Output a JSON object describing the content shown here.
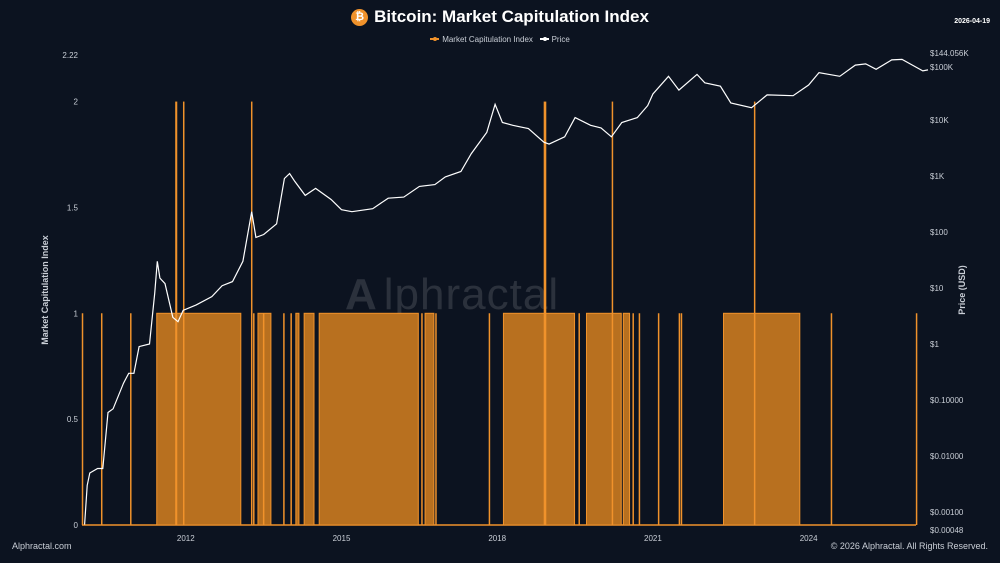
{
  "header": {
    "title": "Bitcoin: Market Capitulation Index",
    "coin_icon": "bitcoin-icon",
    "date": "2026-04-19"
  },
  "footer": {
    "left": "Alphractal.com",
    "right": "© 2026 Alphractal. All Rights Reserved."
  },
  "watermark": "Alphractal",
  "colors": {
    "background": "#0c1320",
    "index": "#f0922b",
    "index_fill": "#b8701f",
    "price": "#ffffff"
  },
  "chart_data": {
    "type": "line",
    "title": "Bitcoin: Market Capitulation Index",
    "xlabel": "",
    "ylabel": "Market Capitulation Index",
    "y2label": "Price (USD)",
    "xlim": [
      2010.0,
      2026.3
    ],
    "ylim": [
      0,
      2.22
    ],
    "y2lim": [
      0.00048,
      144056
    ],
    "y2scale": "log",
    "grid": false,
    "legend_placement": "top-center",
    "x_ticks": [
      "2012",
      "2015",
      "2018",
      "2021",
      "2024"
    ],
    "x_tick_values": [
      2012,
      2015,
      2018,
      2021,
      2024
    ],
    "y_ticks": [
      "0",
      "0.5",
      "1",
      "1.5",
      "2",
      "2.22"
    ],
    "y_tick_values": [
      0,
      0.5,
      1,
      1.5,
      2,
      2.22
    ],
    "y2_ticks": [
      "$0.00048",
      "$0.00100",
      "$0.01000",
      "$0.10000",
      "$1",
      "$10",
      "$100",
      "$1K",
      "$10K",
      "$100K",
      "$144.056K"
    ],
    "y2_tick_values": [
      0.00048,
      0.001,
      0.01,
      0.1,
      1,
      10,
      100,
      1000,
      10000,
      100000,
      144056
    ],
    "series": [
      {
        "name": "Market Capitulation Index",
        "color": "#f0922b",
        "kind": "step",
        "ranges_value_1": [
          [
            2011.44,
            2013.06
          ],
          [
            2013.39,
            2013.64
          ],
          [
            2014.12,
            2014.18
          ],
          [
            2014.28,
            2014.47
          ],
          [
            2014.57,
            2016.48
          ],
          [
            2016.61,
            2016.78
          ],
          [
            2018.12,
            2019.49
          ],
          [
            2019.72,
            2020.39
          ],
          [
            2020.43,
            2020.55
          ],
          [
            2022.36,
            2023.83
          ]
        ],
        "spikes_value_1": [
          2010.01,
          2010.38,
          2010.94,
          2013.31,
          2013.5,
          2013.89,
          2014.03,
          2016.55,
          2016.82,
          2017.85,
          2019.58,
          2020.62,
          2020.74,
          2021.11,
          2021.51,
          2021.55,
          2024.44,
          2026.08
        ],
        "spikes_value_2": [
          [
            2011.81,
            2011.85
          ],
          [
            2011.96,
            2011.96
          ],
          [
            2013.27,
            2013.27
          ],
          [
            2018.91,
            2018.96
          ],
          [
            2020.22,
            2020.22
          ],
          [
            2022.96,
            2022.96
          ]
        ]
      },
      {
        "name": "Price",
        "color": "#ffffff",
        "kind": "line",
        "axis": "right",
        "x": [
          2010.05,
          2010.1,
          2010.15,
          2010.3,
          2010.4,
          2010.5,
          2010.6,
          2010.8,
          2010.9,
          2011.0,
          2011.1,
          2011.3,
          2011.4,
          2011.45,
          2011.5,
          2011.6,
          2011.75,
          2011.85,
          2011.95,
          2012.2,
          2012.5,
          2012.7,
          2012.9,
          2013.1,
          2013.27,
          2013.35,
          2013.5,
          2013.75,
          2013.9,
          2014.0,
          2014.1,
          2014.3,
          2014.5,
          2014.8,
          2015.0,
          2015.2,
          2015.6,
          2015.9,
          2016.2,
          2016.5,
          2016.8,
          2017.0,
          2017.3,
          2017.5,
          2017.8,
          2017.96,
          2018.1,
          2018.3,
          2018.6,
          2018.9,
          2019.0,
          2019.3,
          2019.5,
          2019.8,
          2020.0,
          2020.2,
          2020.4,
          2020.7,
          2020.9,
          2021.0,
          2021.3,
          2021.5,
          2021.85,
          2022.0,
          2022.3,
          2022.5,
          2022.9,
          2023.2,
          2023.7,
          2024.0,
          2024.2,
          2024.6,
          2024.9,
          2025.1,
          2025.3,
          2025.6,
          2025.8,
          2026.0,
          2026.2,
          2026.3
        ],
        "y": [
          0.0006,
          0.003,
          0.005,
          0.006,
          0.006,
          0.06,
          0.07,
          0.2,
          0.3,
          0.3,
          0.9,
          1,
          8,
          30,
          15,
          12,
          3,
          2.5,
          4,
          5,
          7,
          11,
          13,
          30,
          230,
          80,
          90,
          140,
          900,
          1100,
          800,
          450,
          600,
          380,
          250,
          230,
          260,
          400,
          420,
          650,
          700,
          960,
          1200,
          2500,
          6000,
          19000,
          9000,
          8000,
          7000,
          4000,
          3700,
          5000,
          11000,
          8000,
          7200,
          5000,
          9000,
          11000,
          18000,
          29000,
          60000,
          34000,
          65000,
          46000,
          40000,
          20000,
          16500,
          28000,
          27000,
          42000,
          70000,
          60000,
          95000,
          100000,
          80000,
          118000,
          120000,
          95000,
          75000,
          78000
        ]
      }
    ]
  }
}
